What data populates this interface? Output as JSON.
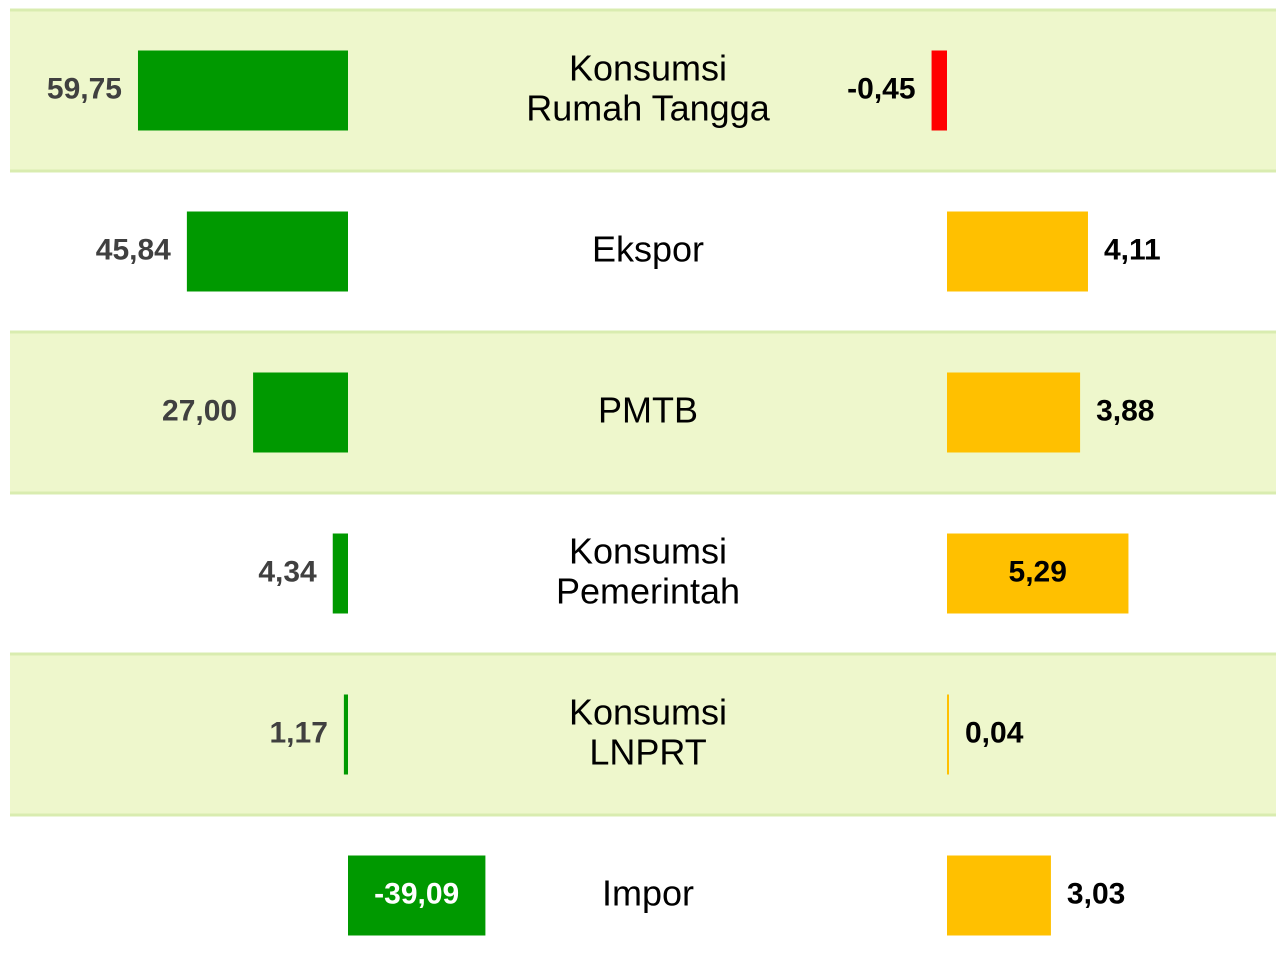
{
  "chart_data": {
    "type": "bar",
    "categories": [
      [
        "Konsumsi",
        "Rumah Tangga"
      ],
      [
        "Ekspor"
      ],
      [
        "PMTB"
      ],
      [
        "Konsumsi",
        "Pemerintah"
      ],
      [
        "Konsumsi",
        "LNPRT"
      ],
      [
        "Impor"
      ]
    ],
    "series": [
      {
        "color": "#009900",
        "values": [
          59.75,
          45.84,
          27.0,
          4.34,
          1.17,
          -39.09
        ],
        "value_labels": [
          "59,75",
          "45,84",
          "27,00",
          "4,34",
          "1,17",
          "-39,09"
        ]
      },
      {
        "color": "#ffc000",
        "negative_color": "#ff0000",
        "values": [
          -0.45,
          4.11,
          3.88,
          5.29,
          0.04,
          3.03
        ],
        "value_labels": [
          "-0,45",
          "4,11",
          "3,88",
          "5,29",
          "0,04",
          "3,03"
        ]
      }
    ]
  }
}
